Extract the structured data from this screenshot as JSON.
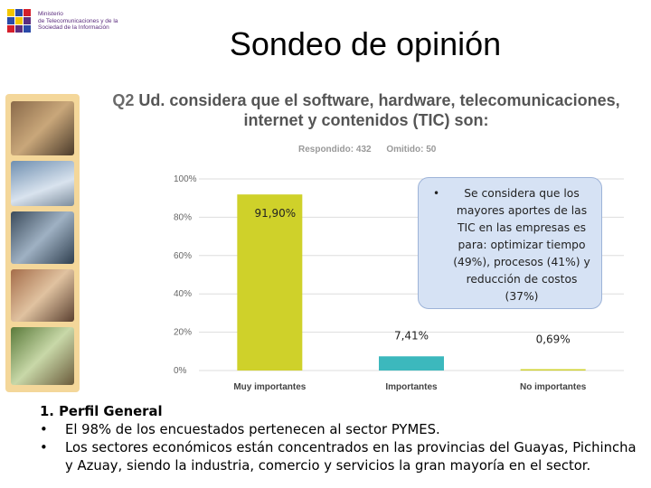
{
  "header": {
    "logo_lines": [
      "Ministerio",
      "de Telecomunicaciones y de la",
      "Sociedad de la Información"
    ],
    "title": "Sondeo de opinión"
  },
  "question": {
    "number": "Q2",
    "text": "Ud. considera que el software, hardware, telecomunicaciones, internet y contenidos (TIC) son:",
    "answered": "Respondido: 432",
    "skipped": "Omitido: 50"
  },
  "chart_data": {
    "type": "bar",
    "categories": [
      "Muy importantes",
      "Importantes",
      "No importantes"
    ],
    "values": [
      91.9,
      7.41,
      0.69
    ],
    "data_labels": [
      "91,90%",
      "7,41%",
      "0,69%"
    ],
    "bar_colors": [
      "#cfd12a",
      "#3cb8bd",
      "#cfd12a"
    ],
    "ylim": [
      0,
      100
    ],
    "yticks": [
      "0%",
      "20%",
      "40%",
      "60%",
      "80%",
      "100%"
    ],
    "grid": true
  },
  "callout": {
    "bullet": "•",
    "text": "Se considera que los mayores aportes de las TIC en las empresas es para: optimizar tiempo (49%), procesos (41%) y reducción de costos (37%)"
  },
  "footer": {
    "heading": "1. Perfil General",
    "bullets": [
      "El 98% de los encuestados pertenecen al sector PYMES.",
      "Los sectores económicos están concentrados en las provincias del Guayas, Pichincha y Azuay, siendo la industria, comercio y servicios la gran mayoría en el sector."
    ]
  },
  "colors": {
    "strip": "#f4d79a",
    "callout_fill": "#d6e2f4"
  }
}
